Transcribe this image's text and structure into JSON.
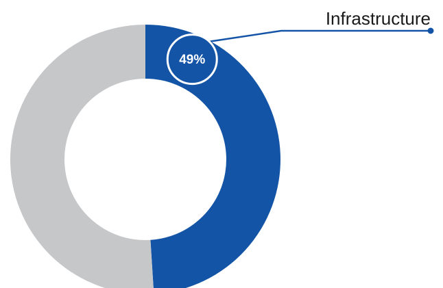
{
  "chart_data": {
    "type": "pie",
    "variant": "donut",
    "title": "",
    "slices": [
      {
        "label": "Infrastructure",
        "value": 49,
        "display": "49%",
        "color": "#1354a6"
      },
      {
        "label": "",
        "value": 51,
        "display": "",
        "color": "#c6c7c9"
      }
    ],
    "start_angle_deg": 0,
    "direction": "clockwise",
    "callout": {
      "slice_index": 0,
      "label": "Infrastructure",
      "badge_text": "49%",
      "line_color": "#1354a6"
    }
  }
}
